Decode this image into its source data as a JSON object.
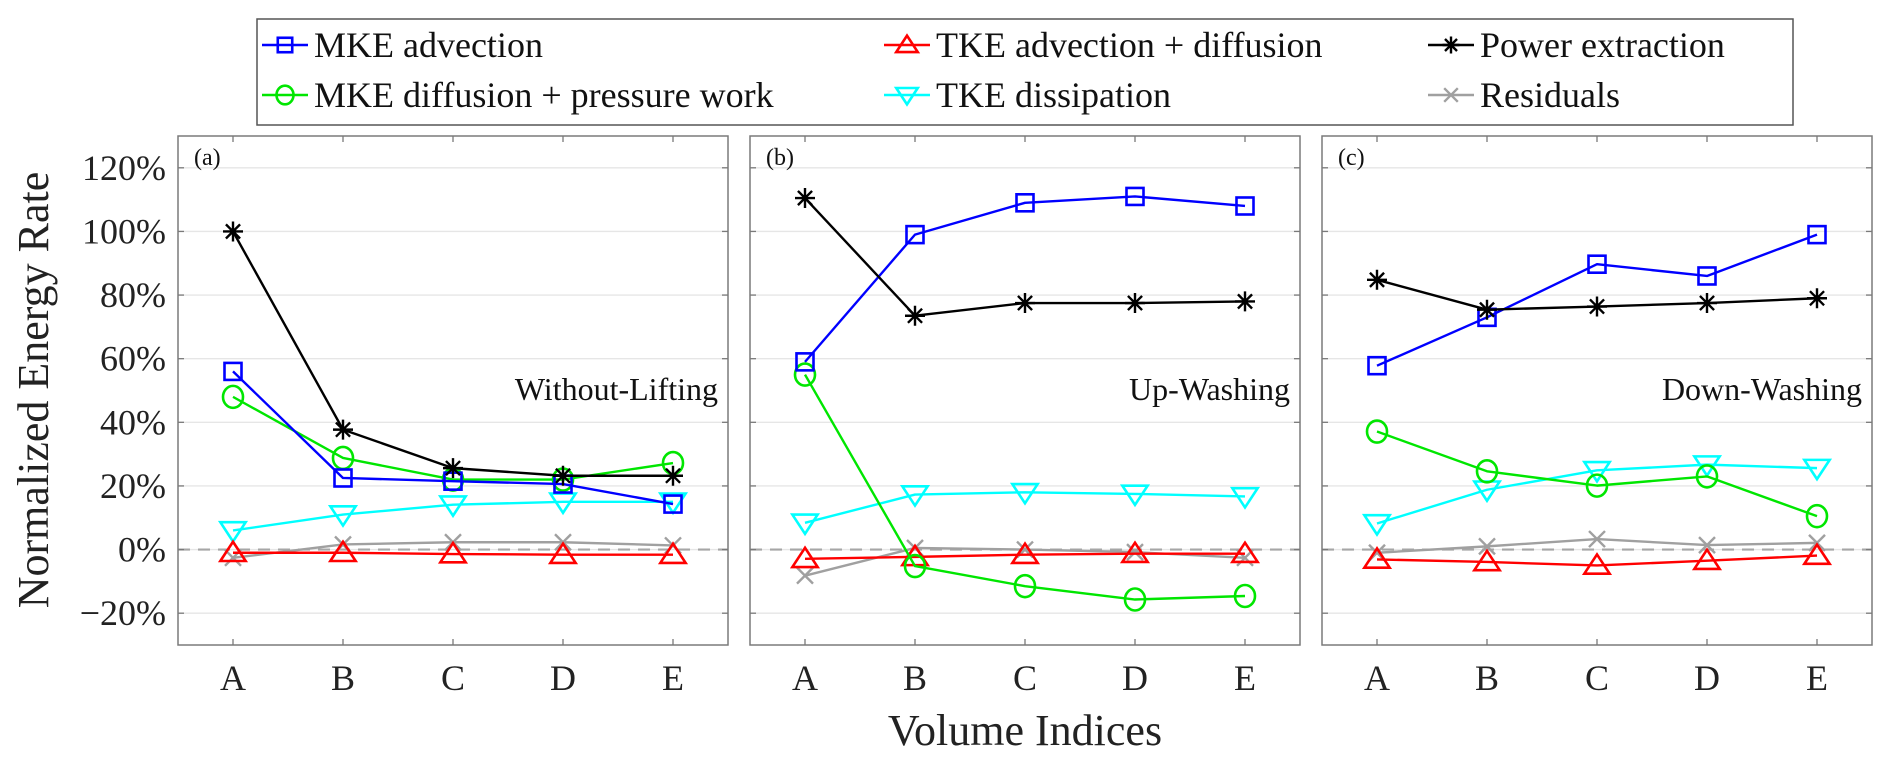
{
  "chart_data": {
    "type": "line",
    "ylabel": "Normalized Energy Rate",
    "xlabel": "Volume Indices",
    "categories": [
      "A",
      "B",
      "C",
      "D",
      "E"
    ],
    "ylim": [
      -30,
      130
    ],
    "yticks": [
      -20,
      0,
      20,
      40,
      60,
      80,
      100,
      120
    ],
    "ytick_labels": [
      "−20%",
      "0%",
      "20%",
      "40%",
      "60%",
      "80%",
      "100%",
      "120%"
    ],
    "grid": true,
    "zero_reference_line": "dashed",
    "legend": {
      "placement": "top-center",
      "columns": 3,
      "entries": [
        {
          "key": "mke_adv",
          "label": "MKE advection",
          "color": "#0000ff",
          "marker": "square"
        },
        {
          "key": "tke_adv",
          "label": "TKE advection + diffusion",
          "color": "#ff0000",
          "marker": "triangle-up"
        },
        {
          "key": "power",
          "label": "Power extraction",
          "color": "#000000",
          "marker": "asterisk"
        },
        {
          "key": "mke_diff",
          "label": "MKE diffusion + pressure work",
          "color": "#00e600",
          "marker": "circle"
        },
        {
          "key": "tke_diss",
          "label": "TKE dissipation",
          "color": "#00ffff",
          "marker": "triangle-down"
        },
        {
          "key": "residuals",
          "label": "Residuals",
          "color": "#a0a0a0",
          "marker": "x"
        }
      ]
    },
    "panels": [
      {
        "tag": "(a)",
        "name": "Without-Lifting",
        "series": [
          {
            "key": "mke_adv",
            "values": [
              56,
              22.5,
              21.5,
              20.6,
              14.3
            ]
          },
          {
            "key": "mke_diff",
            "values": [
              48,
              28.8,
              22,
              22,
              27.2
            ]
          },
          {
            "key": "tke_adv",
            "values": [
              -1,
              -1,
              -1.4,
              -1.6,
              -1.6
            ]
          },
          {
            "key": "tke_diss",
            "values": [
              6,
              11,
              14.1,
              15,
              15
            ]
          },
          {
            "key": "power",
            "values": [
              100,
              37.7,
              25.6,
              23.2,
              23.2
            ]
          },
          {
            "key": "residuals",
            "values": [
              -2.6,
              1.6,
              2.3,
              2.3,
              1.3
            ]
          }
        ]
      },
      {
        "tag": "(b)",
        "name": "Up-Washing",
        "series": [
          {
            "key": "mke_adv",
            "values": [
              59,
              99,
              109,
              111,
              108
            ]
          },
          {
            "key": "mke_diff",
            "values": [
              55,
              -5.2,
              -11.5,
              -15.7,
              -14.6
            ]
          },
          {
            "key": "tke_adv",
            "values": [
              -2.9,
              -2.3,
              -1.6,
              -1.3,
              -1.3
            ]
          },
          {
            "key": "tke_diss",
            "values": [
              8.4,
              17.3,
              18,
              17.5,
              16.7
            ]
          },
          {
            "key": "power",
            "values": [
              110.5,
              73.5,
              77.5,
              77.5,
              78
            ]
          },
          {
            "key": "residuals",
            "values": [
              -8.2,
              0.5,
              0,
              -0.8,
              -2.6
            ]
          }
        ]
      },
      {
        "tag": "(c)",
        "name": "Down-Washing",
        "series": [
          {
            "key": "mke_adv",
            "values": [
              57.8,
              73,
              89.7,
              86,
              99
            ]
          },
          {
            "key": "mke_diff",
            "values": [
              37.1,
              24.6,
              20.1,
              23,
              10.5
            ]
          },
          {
            "key": "tke_adv",
            "values": [
              -3.1,
              -3.9,
              -5,
              -3.5,
              -1.9
            ]
          },
          {
            "key": "tke_diss",
            "values": [
              8.2,
              18.8,
              24.9,
              26.7,
              25.6
            ]
          },
          {
            "key": "power",
            "values": [
              84.8,
              75.4,
              76.4,
              77.5,
              79
            ]
          },
          {
            "key": "residuals",
            "values": [
              -1,
              1,
              3.3,
              1.4,
              2.1
            ]
          }
        ]
      }
    ]
  }
}
